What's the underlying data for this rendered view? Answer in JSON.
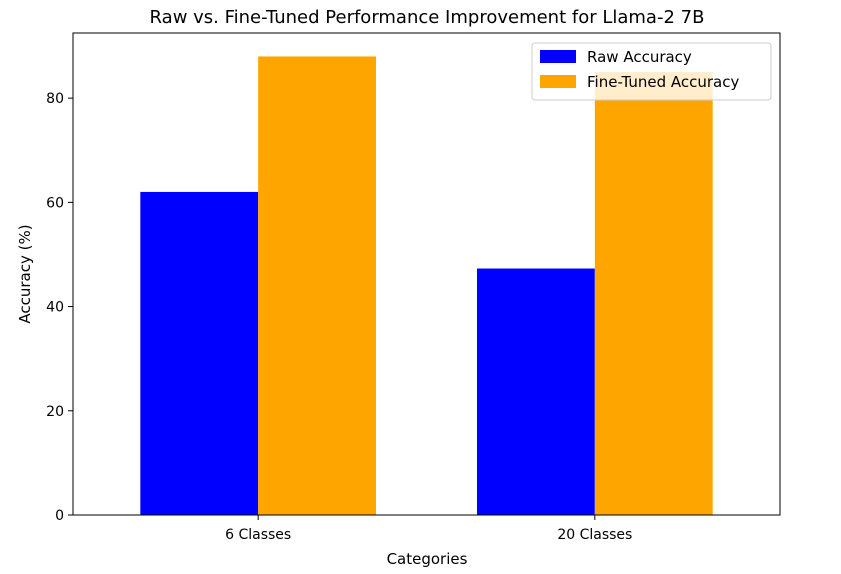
{
  "chart_data": {
    "type": "bar",
    "title": "Raw vs. Fine-Tuned Performance Improvement for Llama-2 7B",
    "xlabel": "Categories",
    "ylabel": "Accuracy (%)",
    "categories": [
      "6 Classes",
      "20 Classes"
    ],
    "series": [
      {
        "name": "Raw Accuracy",
        "values": [
          62,
          47.3
        ],
        "color": "#0000ff"
      },
      {
        "name": "Fine-Tuned Accuracy",
        "values": [
          88,
          85
        ],
        "color": "#ffa500"
      }
    ],
    "ylim": [
      0,
      92.5
    ],
    "yticks": [
      0,
      20,
      40,
      60,
      80
    ],
    "grid": false,
    "legend_position": "top-right"
  }
}
